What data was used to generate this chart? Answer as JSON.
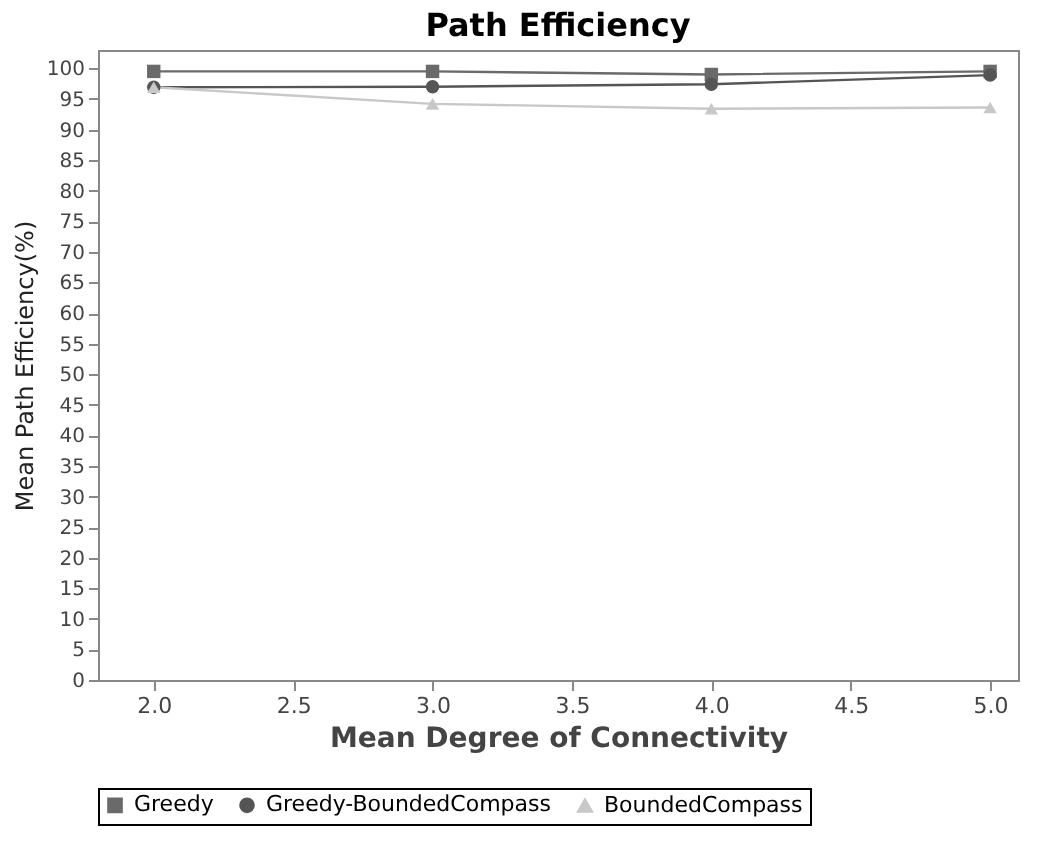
{
  "chart_data": {
    "type": "line",
    "title": "Path Efficiency",
    "xlabel": "Mean Degree of Connectivity",
    "ylabel": "Mean Path Efficiency(%)",
    "x": [
      2.0,
      3.0,
      4.0,
      5.0
    ],
    "xlim": [
      1.8,
      5.1
    ],
    "xticks": [
      {
        "value": 2,
        "label": "2.0"
      },
      {
        "value": 2.5,
        "label": "2.5"
      },
      {
        "value": 3,
        "label": "3.0"
      },
      {
        "value": 3.5,
        "label": "3.5"
      },
      {
        "value": 4,
        "label": "4.0"
      },
      {
        "value": 4.5,
        "label": "4.5"
      },
      {
        "value": 5,
        "label": "5.0"
      }
    ],
    "ylim": [
      0,
      103
    ],
    "yticks": [
      0,
      5,
      10,
      15,
      20,
      25,
      30,
      35,
      40,
      45,
      50,
      55,
      60,
      65,
      70,
      75,
      80,
      85,
      90,
      95,
      100
    ],
    "series": [
      {
        "name": "Greedy",
        "color": "#6a6a6a",
        "marker": "square",
        "values": [
          99.5,
          99.5,
          99,
          99.5
        ]
      },
      {
        "name": "Greedy-BoundedCompass",
        "color": "#555555",
        "marker": "circle",
        "values": [
          96.9,
          97,
          97.4,
          98.9
        ]
      },
      {
        "name": "BoundedCompass",
        "color": "#c8c8c8",
        "marker": "triangle",
        "values": [
          96.9,
          94.2,
          93.4,
          93.6
        ]
      }
    ],
    "grid": false,
    "legend": "bottom"
  }
}
